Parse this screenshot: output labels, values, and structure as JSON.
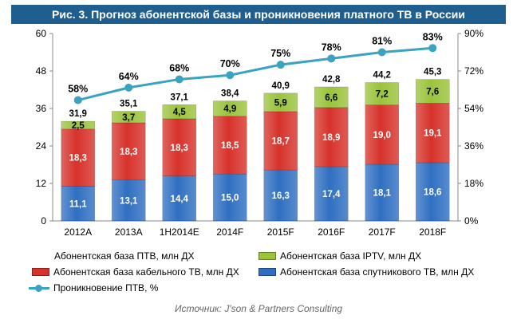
{
  "title": "Рис. 3. Прогноз абонентской базы и проникновения платного ТВ в России",
  "source": "Источник: J'son & Partners Consulting",
  "colors": {
    "satellite": "#2f6fc1",
    "cable": "#d6322a",
    "iptv": "#9ac33b",
    "penetration": "#3aa3c2"
  },
  "chart_data": {
    "type": "bar",
    "stacked": true,
    "categories": [
      "2012А",
      "2013А",
      "1H2014E",
      "2014F",
      "2015F",
      "2016F",
      "2017F",
      "2018F"
    ],
    "series": [
      {
        "name": "Абонентская база спутникового ТВ, млн ДХ",
        "key": "satellite",
        "values": [
          11.1,
          13.1,
          14.4,
          15.0,
          16.3,
          17.4,
          18.1,
          18.6
        ],
        "labels": [
          "11,1",
          "13,1",
          "14,4",
          "15,0",
          "16,3",
          "17,4",
          "18,1",
          "18,6"
        ]
      },
      {
        "name": "Абонентская база кабельного ТВ, млн ДХ",
        "key": "cable",
        "values": [
          18.3,
          18.3,
          18.3,
          18.5,
          18.7,
          18.9,
          19.0,
          19.1
        ],
        "labels": [
          "18,3",
          "18,3",
          "18,3",
          "18,5",
          "18,7",
          "18,9",
          "19,0",
          "19,1"
        ]
      },
      {
        "name": "Абонентская база IPTV, млн ДХ",
        "key": "iptv",
        "values": [
          2.5,
          3.7,
          4.5,
          4.9,
          5.9,
          6.6,
          7.2,
          7.6
        ],
        "labels": [
          "2,5",
          "3,7",
          "4,5",
          "4,9",
          "5,9",
          "6,6",
          "7,2",
          "7,6"
        ]
      }
    ],
    "totals": [
      "31,9",
      "35,1",
      "37,1",
      "38,4",
      "40,9",
      "42,8",
      "44,2",
      "45,3"
    ],
    "line": {
      "name": "Проникновение ПТВ, %",
      "values": [
        58,
        64,
        68,
        70,
        75,
        78,
        81,
        83
      ],
      "labels": [
        "58%",
        "64%",
        "68%",
        "70%",
        "75%",
        "78%",
        "81%",
        "83%"
      ]
    },
    "y_left": {
      "ticks": [
        "0",
        "12",
        "24",
        "36",
        "48",
        "60"
      ],
      "ylim": [
        0,
        60
      ]
    },
    "y_right": {
      "ticks": [
        "0%",
        "18%",
        "36%",
        "54%",
        "72%",
        "90%"
      ],
      "ylim": [
        0,
        90
      ]
    },
    "legend": [
      {
        "label": "Абонентская база ПТВ, млн ДХ",
        "kind": "none"
      },
      {
        "label": "Абонентская база IPTV, млн ДХ",
        "kind": "iptv"
      },
      {
        "label": "Абонентская база кабельного ТВ, млн ДХ",
        "kind": "cable"
      },
      {
        "label": "Абонентская база спутникового ТВ, млн ДХ",
        "kind": "satellite"
      },
      {
        "label": "Проникновение ПТВ, %",
        "kind": "line"
      }
    ]
  }
}
